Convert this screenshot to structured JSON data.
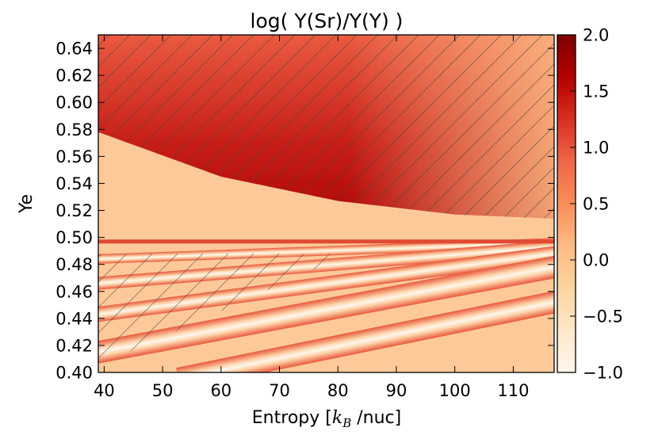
{
  "chart_data": {
    "type": "heatmap",
    "title": "log( Y(Sr)/Y(Y) )",
    "xlabel_prefix": "Entropy [",
    "xlabel_math_k": "k",
    "xlabel_math_sub": "B",
    "xlabel_suffix": " /nuc]",
    "ylabel": "Ye",
    "xlim": [
      39,
      117
    ],
    "ylim": [
      0.4,
      0.65
    ],
    "x_ticks": [
      40,
      50,
      60,
      70,
      80,
      90,
      100,
      110
    ],
    "x_tick_labels": [
      "40",
      "50",
      "60",
      "70",
      "80",
      "90",
      "100",
      "110"
    ],
    "y_ticks": [
      0.4,
      0.42,
      0.44,
      0.46,
      0.48,
      0.5,
      0.52,
      0.54,
      0.56,
      0.58,
      0.6,
      0.62,
      0.64
    ],
    "y_tick_labels": [
      "0.40",
      "0.42",
      "0.44",
      "0.46",
      "0.48",
      "0.50",
      "0.52",
      "0.54",
      "0.56",
      "0.58",
      "0.60",
      "0.62",
      "0.64"
    ],
    "colorbar": {
      "colormap": "OrRd",
      "range": [
        -1.0,
        2.0
      ],
      "ticks": [
        -1.0,
        -0.5,
        0.0,
        0.5,
        1.0,
        1.5,
        2.0
      ],
      "tick_labels": [
        "−1.0",
        "−0.5",
        "0.0",
        "0.5",
        "1.0",
        "1.5",
        "2.0"
      ]
    },
    "background_value": 0.0,
    "regions": [
      {
        "name": "high-Ye Sr-enhanced region",
        "ye_boundary_at_entropy": [
          [
            39,
            0.578
          ],
          [
            60,
            0.545
          ],
          [
            80,
            0.527
          ],
          [
            100,
            0.517
          ],
          [
            117,
            0.514
          ]
        ],
        "value_near_boundary": 2.0,
        "value_at_top": 1.1,
        "hatched": true
      },
      {
        "name": "ridge at Ye 0.497",
        "entropy_range": [
          39,
          117
        ],
        "ye": 0.497,
        "value": 1.1
      },
      {
        "name": "band 1",
        "ye_at_entropy": [
          [
            39,
            0.484
          ],
          [
            117,
            0.496
          ]
        ],
        "value": -0.9
      },
      {
        "name": "band 2",
        "ye_at_entropy": [
          [
            39,
            0.466
          ],
          [
            117,
            0.493
          ]
        ],
        "value": -0.9
      },
      {
        "name": "band 3",
        "ye_at_entropy": [
          [
            39,
            0.443
          ],
          [
            117,
            0.488
          ]
        ],
        "value": -1.0
      },
      {
        "name": "band 4",
        "ye_at_entropy": [
          [
            39,
            0.415
          ],
          [
            117,
            0.478
          ]
        ],
        "value": -1.0
      },
      {
        "name": "band 5",
        "ye_at_entropy": [
          [
            58,
            0.4
          ],
          [
            117,
            0.452
          ]
        ],
        "value": -0.8
      }
    ]
  }
}
